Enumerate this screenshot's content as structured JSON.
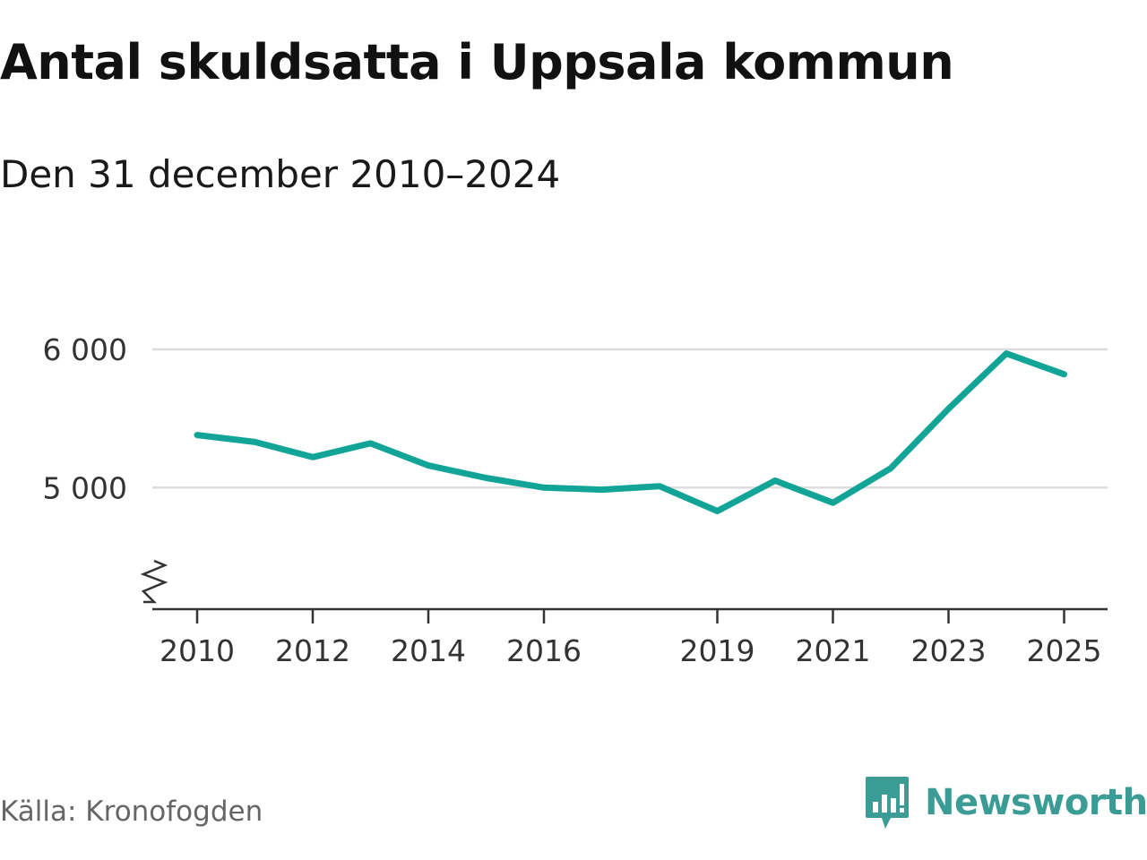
{
  "chart_data": {
    "type": "line",
    "title": "Antal skuldsatta i Uppsala kommun",
    "subtitle": "Den 31 december 2010–2024",
    "xlabel": "",
    "ylabel": "",
    "ylim": [
      4120,
      6000
    ],
    "xlim": [
      2009.62,
      2025.4
    ],
    "x_ticks": [
      "2010",
      "2012",
      "2014",
      "2016",
      "2019",
      "2021",
      "2023",
      "2025"
    ],
    "y_ticks": [
      "5 000",
      "6 000"
    ],
    "grid": true,
    "axis_break": true,
    "series": [
      {
        "name": "Antal skuldsatta",
        "color": "#12a597",
        "x": [
          2010,
          2011,
          2012,
          2013,
          2014,
          2015,
          2016,
          2017,
          2018,
          2019,
          2020,
          2021,
          2022,
          2023,
          2024,
          2025
        ],
        "values": [
          5380,
          5330,
          5220,
          5320,
          5160,
          5070,
          5000,
          4985,
          5010,
          4830,
          5050,
          4890,
          5140,
          5570,
          5970,
          5820
        ]
      }
    ]
  },
  "footer": {
    "source": "Källa: Kronofogden",
    "brand": "Newsworthy"
  },
  "colors": {
    "line": "#12a597",
    "grid": "#dddddd",
    "axis": "#333333",
    "brand": "#3a9c95"
  }
}
